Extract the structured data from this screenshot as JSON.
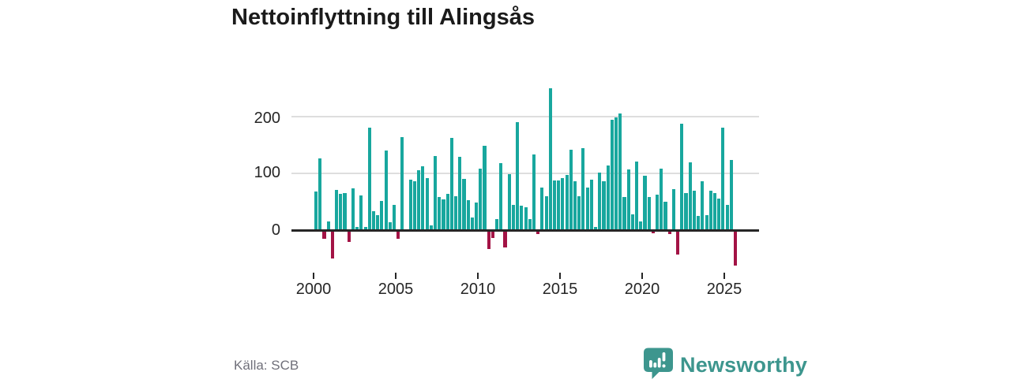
{
  "title": "Nettoinflyttning till Alingsås",
  "source_label": "Källa: SCB",
  "branding": {
    "name": "Newsworthy",
    "color": "#3d968e"
  },
  "chart_data": {
    "type": "bar",
    "title": "Nettoinflyttning till Alingsås",
    "frequency": "quarterly",
    "x_tick_labels": [
      "2000",
      "2005",
      "2010",
      "2015",
      "2020",
      "2025"
    ],
    "y_ticks": [
      0,
      100,
      200
    ],
    "ylim": [
      -75,
      273
    ],
    "grid": "horizontal",
    "legend": "none",
    "positive_color": "#18a79e",
    "negative_color": "#a31345",
    "values_by_year": {
      "2000": [
        68,
        127,
        -15,
        16
      ],
      "2001": [
        -50,
        71,
        64,
        65
      ],
      "2002": [
        -21,
        74,
        6,
        61
      ],
      "2003": [
        6,
        181,
        34,
        27
      ],
      "2004": [
        52,
        141,
        14,
        45
      ],
      "2005": [
        -15,
        164,
        2,
        89
      ],
      "2006": [
        86,
        105,
        112,
        92
      ],
      "2007": [
        8,
        131,
        58,
        54
      ],
      "2008": [
        64,
        163,
        60,
        129
      ],
      "2009": [
        90,
        53,
        22,
        48
      ],
      "2010": [
        109,
        149,
        -33,
        -14
      ],
      "2011": [
        19,
        118,
        -30,
        99
      ],
      "2012": [
        44,
        191,
        43,
        41
      ],
      "2013": [
        20,
        134,
        -7,
        75
      ],
      "2014": [
        60,
        250,
        87,
        87
      ],
      "2015": [
        92,
        97,
        142,
        86
      ],
      "2016": [
        60,
        144,
        75,
        89
      ],
      "2017": [
        6,
        101,
        86,
        114
      ],
      "2018": [
        195,
        198,
        206,
        58
      ],
      "2019": [
        107,
        28,
        121,
        16
      ],
      "2020": [
        96,
        59,
        -6,
        62
      ],
      "2021": [
        108,
        50,
        -7,
        72
      ],
      "2022": [
        -43,
        188,
        65,
        120
      ],
      "2023": [
        70,
        25,
        86,
        26
      ],
      "2024": [
        69,
        65,
        56,
        180
      ],
      "2025": [
        44,
        123,
        -62
      ]
    }
  }
}
